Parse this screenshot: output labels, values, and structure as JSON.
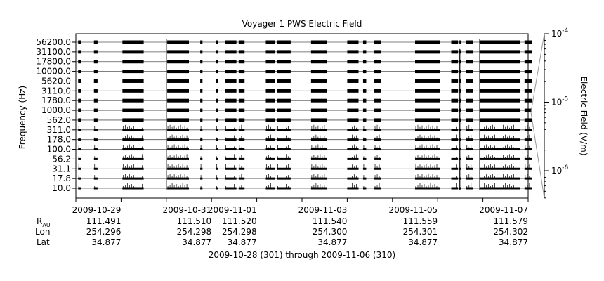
{
  "chart_data": {
    "type": "line",
    "title": "Voyager 1 PWS Electric Field",
    "ylabel": "Frequency (Hz)",
    "colorbar": {
      "label": "Electric Field (V/m)",
      "ticks": [
        {
          "base": "10",
          "exp": "-4",
          "value": 0.0001
        },
        {
          "base": "10",
          "exp": "-5",
          "value": 1e-05
        },
        {
          "base": "10",
          "exp": "-6",
          "value": 1e-06
        }
      ]
    },
    "frequency_channels": [
      "56200.0",
      "31100.0",
      "17800.0",
      "10000.0",
      "5620.0",
      "3110.0",
      "1780.0",
      "1000.0",
      "562.0",
      "311.0",
      "178.0",
      "100.0",
      "56.2",
      "31.1",
      "17.8",
      "10.0"
    ],
    "x_label": "2009-10-28 (301) through 2009-11-06 (310)",
    "x_range_days": [
      0,
      10
    ],
    "x_ticks": [
      {
        "day": 1,
        "label": "2009-10-29"
      },
      {
        "day": 3,
        "label": "2009-10-31"
      },
      {
        "day": 4,
        "label": "2009-11-01"
      },
      {
        "day": 6,
        "label": "2009-11-03"
      },
      {
        "day": 8,
        "label": "2009-11-05"
      },
      {
        "day": 10,
        "label": "2009-11-07"
      }
    ],
    "ephemeris_labels": {
      "r": "R",
      "r_sub": "AU",
      "lon": "Lon",
      "lat": "Lat"
    },
    "ephemeris": [
      {
        "day": 1,
        "r": "111.491",
        "lon": "254.296",
        "lat": "34.877"
      },
      {
        "day": 3,
        "r": "111.510",
        "lon": "254.298",
        "lat": "34.877"
      },
      {
        "day": 4,
        "r": "111.520",
        "lon": "254.298",
        "lat": "34.877"
      },
      {
        "day": 6,
        "r": "111.540",
        "lon": "254.300",
        "lat": "34.877"
      },
      {
        "day": 8,
        "r": "111.559",
        "lon": "254.301",
        "lat": "34.877"
      },
      {
        "day": 10,
        "r": "111.579",
        "lon": "254.302",
        "lat": "34.877"
      }
    ],
    "data_segments_days": [
      [
        0.05,
        0.12
      ],
      [
        0.4,
        0.48
      ],
      [
        1.03,
        1.5
      ],
      [
        2.02,
        2.5
      ],
      [
        2.75,
        2.8
      ],
      [
        3.1,
        3.15
      ],
      [
        3.3,
        3.55
      ],
      [
        3.6,
        3.73
      ],
      [
        4.2,
        4.4
      ],
      [
        4.45,
        4.75
      ],
      [
        5.2,
        5.55
      ],
      [
        6.0,
        6.25
      ],
      [
        6.35,
        6.42
      ],
      [
        6.6,
        6.75
      ],
      [
        7.5,
        8.05
      ],
      [
        8.3,
        8.45
      ],
      [
        8.48,
        8.5
      ],
      [
        8.63,
        8.78
      ],
      [
        8.92,
        9.82
      ],
      [
        9.92,
        10.08
      ]
    ],
    "spikes": [
      {
        "day": 2.0,
        "top_channel": 0
      },
      {
        "day": 8.49,
        "top_channel": 1
      },
      {
        "day": 8.93,
        "top_channel": 0
      }
    ]
  }
}
